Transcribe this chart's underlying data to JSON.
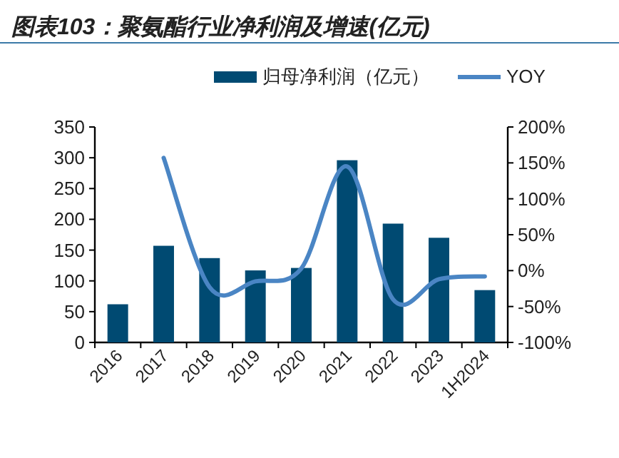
{
  "chart_data": {
    "type": "bar",
    "title": "图表103：聚氨酯行业净利润及增速(亿元)",
    "categories": [
      "2016",
      "2017",
      "2018",
      "2019",
      "2020",
      "2021",
      "2022",
      "2023",
      "1H2024"
    ],
    "series": [
      {
        "name": "归母净利润（亿元）",
        "color": "#004a72",
        "values": [
          62,
          157,
          137,
          117,
          121,
          296,
          193,
          170,
          85
        ]
      },
      {
        "name": "YOY",
        "type": "line",
        "axis": "y2",
        "color": "#4a85c4",
        "values": [
          null,
          157,
          -23,
          -15,
          3,
          145,
          -40,
          -12,
          -8
        ]
      }
    ],
    "ylim": [
      0,
      350
    ],
    "yticks": [
      0,
      50,
      100,
      150,
      200,
      250,
      300,
      350
    ],
    "y2lim": [
      -100,
      200
    ],
    "y2ticks": [
      {
        "value": -100,
        "label": "-100%"
      },
      {
        "value": -50,
        "label": "-50%"
      },
      {
        "value": 0,
        "label": "0%"
      },
      {
        "value": 50,
        "label": "50%"
      },
      {
        "value": 100,
        "label": "100%"
      },
      {
        "value": 150,
        "label": "150%"
      },
      {
        "value": 200,
        "label": "200%"
      }
    ],
    "legend": "top",
    "marker": "none",
    "line_style": "solid"
  }
}
